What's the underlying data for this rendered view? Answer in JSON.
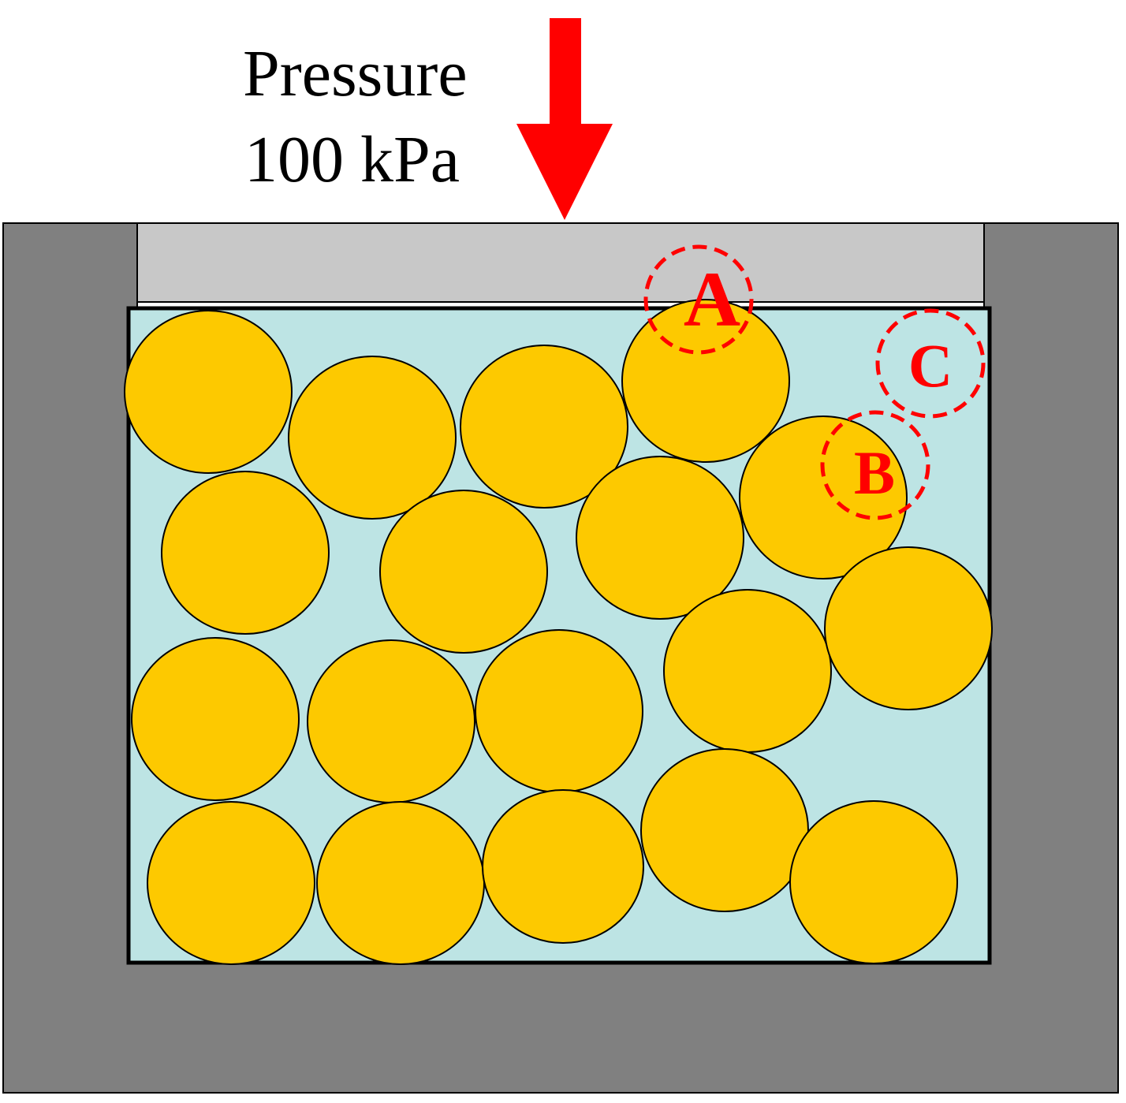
{
  "label": {
    "line1": "Pressure",
    "line2": "100 kPa"
  },
  "markers": {
    "a": "A",
    "b": "B",
    "c": "C"
  },
  "colors": {
    "arrow": "#ff0000",
    "container": "#808080",
    "piston": "#c8c8c8",
    "fluid": "#bde4e4",
    "particle": "#fdc900",
    "marker": "#ff0000"
  }
}
